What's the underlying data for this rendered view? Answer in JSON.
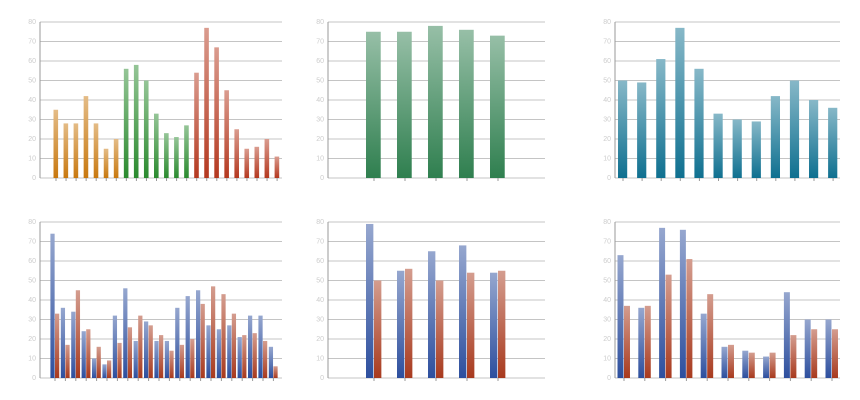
{
  "chart_data": [
    {
      "type": "bar",
      "ylim": [
        0,
        80
      ],
      "yticks": [
        0,
        10,
        20,
        30,
        40,
        50,
        60,
        70,
        80
      ],
      "grid": true,
      "categories": [
        null,
        null,
        null,
        null,
        null,
        null,
        null,
        null,
        null,
        null,
        null,
        null,
        null,
        null,
        null,
        null,
        null,
        null,
        null,
        null,
        null,
        null,
        null
      ],
      "series": [
        {
          "color": "#c8780e",
          "colors": [
            "#c8780e",
            "#c8780e",
            "#c8780e",
            "#c8780e",
            "#c8780e",
            "#c8780e",
            "#c8780e",
            "#2a8a2e",
            "#2a8a2e",
            "#2a8a2e",
            "#2a8a2e",
            "#2a8a2e",
            "#2a8a2e",
            "#2a8a2e",
            "#b4381f",
            "#b4381f",
            "#b4381f",
            "#b4381f",
            "#b4381f",
            "#b4381f",
            "#b4381f",
            "#b4381f",
            "#b4381f"
          ],
          "values": [
            35,
            28,
            28,
            42,
            28,
            15,
            20,
            56,
            58,
            50,
            33,
            23,
            21,
            27,
            54,
            77,
            67,
            45,
            25,
            15,
            16,
            20,
            11
          ]
        }
      ]
    },
    {
      "type": "bar",
      "ylim": [
        0,
        80
      ],
      "yticks": [
        0,
        10,
        20,
        30,
        40,
        50,
        60,
        70,
        80
      ],
      "grid": true,
      "categories": [
        null,
        null,
        null,
        null,
        null
      ],
      "series": [
        {
          "color": "#2f7f4f",
          "values": [
            75,
            75,
            78,
            76,
            73
          ]
        }
      ]
    },
    {
      "type": "bar",
      "ylim": [
        0,
        80
      ],
      "yticks": [
        0,
        10,
        20,
        30,
        40,
        50,
        60,
        70,
        80
      ],
      "grid": true,
      "categories": [
        null,
        null,
        null,
        null,
        null,
        null,
        null,
        null,
        null,
        null,
        null,
        null
      ],
      "series": [
        {
          "color": "#0f7090",
          "values": [
            50,
            49,
            61,
            77,
            56,
            33,
            30,
            29,
            42,
            50,
            40,
            36
          ]
        }
      ]
    },
    {
      "type": "bar",
      "ylim": [
        0,
        80
      ],
      "yticks": [
        0,
        10,
        20,
        30,
        40,
        50,
        60,
        70,
        80
      ],
      "grid": true,
      "categories": [
        null,
        null,
        null,
        null,
        null,
        null,
        null,
        null,
        null,
        null,
        null,
        null,
        null,
        null,
        null,
        null,
        null,
        null,
        null,
        null,
        null,
        null
      ],
      "series": [
        {
          "color": "#2d4f9e",
          "values": [
            74,
            36,
            34,
            24,
            10,
            7,
            32,
            46,
            19,
            29,
            19,
            19,
            36,
            42,
            45,
            27,
            25,
            27,
            21,
            32,
            32,
            16
          ]
        },
        {
          "color": "#a83a1e",
          "values": [
            33,
            17,
            45,
            25,
            16,
            9,
            18,
            26,
            32,
            27,
            22,
            14,
            17,
            20,
            38,
            47,
            43,
            33,
            22,
            23,
            19,
            6
          ]
        }
      ]
    },
    {
      "type": "bar",
      "ylim": [
        0,
        80
      ],
      "yticks": [
        0,
        10,
        20,
        30,
        40,
        50,
        60,
        70,
        80
      ],
      "grid": true,
      "categories": [
        null,
        null,
        null,
        null,
        null
      ],
      "series": [
        {
          "color": "#2d4f9e",
          "values": [
            79,
            55,
            65,
            68,
            54
          ]
        },
        {
          "color": "#a83a1e",
          "values": [
            50,
            56,
            50,
            54,
            55
          ]
        }
      ]
    },
    {
      "type": "bar",
      "ylim": [
        0,
        80
      ],
      "yticks": [
        0,
        10,
        20,
        30,
        40,
        50,
        60,
        70,
        80
      ],
      "grid": true,
      "categories": [
        null,
        null,
        null,
        null,
        null,
        null,
        null,
        null,
        null,
        null,
        null
      ],
      "series": [
        {
          "color": "#2d4f9e",
          "values": [
            63,
            36,
            77,
            76,
            33,
            16,
            14,
            11,
            44,
            30,
            30
          ]
        },
        {
          "color": "#a83a1e",
          "values": [
            37,
            37,
            53,
            61,
            43,
            17,
            13,
            13,
            22,
            25,
            25
          ]
        }
      ]
    }
  ]
}
